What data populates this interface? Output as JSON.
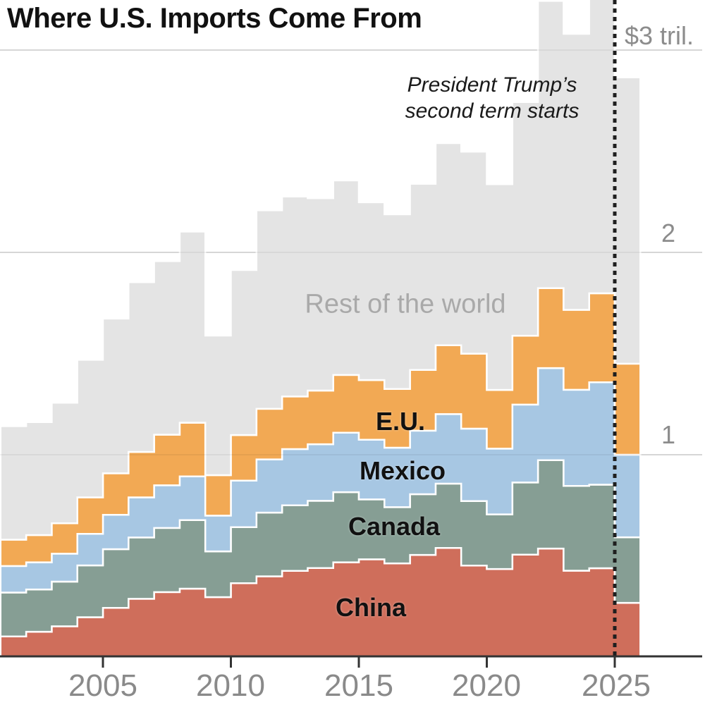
{
  "title": "Where U.S. Imports Come From",
  "annotation": {
    "line1": "President Trump’s",
    "line2": "second term starts"
  },
  "y_axis": {
    "tick_labels": [
      "$3 tril.",
      "2",
      "1"
    ],
    "unit": "trillions of dollars"
  },
  "x_axis": {
    "tick_labels": [
      "2005",
      "2010",
      "2015",
      "2020",
      "2025"
    ]
  },
  "series_labels": {
    "rest": "Rest of the world",
    "eu": "E.U.",
    "mexico": "Mexico",
    "canada": "Canada",
    "china": "China"
  },
  "colors": {
    "china": "#CF6E5B",
    "canada": "#869E94",
    "mexico": "#A7C7E3",
    "eu": "#F2A954",
    "rest": "#E4E4E4",
    "separator": "#FFFFFF",
    "gridline": "#E2E2E2",
    "gridline_overlay": "rgba(0,0,0,0.05)",
    "axis": "#333333",
    "event_line": "#1F1F1F",
    "title_text": "#111111",
    "axis_text": "#8A8A8A",
    "rest_label_text": "#A9A9A9"
  },
  "chart_data": {
    "type": "area",
    "variant": "stacked-step",
    "title": "Where U.S. Imports Come From",
    "units": "$ billions per year",
    "x": [
      2001,
      2002,
      2003,
      2004,
      2005,
      2006,
      2007,
      2008,
      2009,
      2010,
      2011,
      2012,
      2013,
      2014,
      2015,
      2016,
      2017,
      2018,
      2019,
      2020,
      2021,
      2022,
      2023,
      2024,
      2025
    ],
    "series": [
      {
        "key": "china",
        "name": "China",
        "values": [
          102,
          125,
          152,
          197,
          243,
          288,
          321,
          338,
          296,
          365,
          399,
          426,
          440,
          468,
          483,
          463,
          505,
          539,
          452,
          435,
          506,
          536,
          427,
          439,
          268
        ]
      },
      {
        "key": "canada",
        "name": "Canada",
        "values": [
          217,
          209,
          221,
          256,
          290,
          303,
          317,
          339,
          226,
          277,
          315,
          324,
          332,
          347,
          296,
          278,
          300,
          318,
          319,
          270,
          357,
          437,
          419,
          413,
          324
        ]
      },
      {
        "key": "mexico",
        "name": "Mexico",
        "values": [
          131,
          134,
          138,
          156,
          170,
          198,
          211,
          216,
          177,
          230,
          263,
          278,
          280,
          294,
          295,
          294,
          314,
          344,
          358,
          325,
          385,
          455,
          475,
          506,
          408
        ]
      },
      {
        "key": "eu",
        "name": "E.U.",
        "values": [
          130,
          135,
          150,
          180,
          205,
          225,
          250,
          265,
          200,
          225,
          250,
          260,
          265,
          285,
          295,
          290,
          300,
          340,
          370,
          290,
          340,
          395,
          395,
          440,
          450
        ]
      },
      {
        "key": "rest",
        "name": "Rest of the world",
        "values": [
          561,
          558,
          596,
          680,
          765,
          839,
          858,
          945,
          690,
          816,
          981,
          988,
          951,
          962,
          879,
          863,
          920,
          999,
          999,
          1017,
          1155,
          1420,
          1364,
          1469,
          1415
        ]
      }
    ],
    "stacked": true,
    "ylim_billions": [
      0,
      3250
    ],
    "y_gridlines_billions": [
      1000,
      2000,
      3000
    ],
    "x_ticks": [
      2005,
      2010,
      2015,
      2020,
      2025
    ],
    "grid": true,
    "legend_position": "labels-on-areas",
    "event_line": {
      "year": 2025,
      "label": "President Trump’s second term starts",
      "style": "dotted-vertical"
    }
  }
}
